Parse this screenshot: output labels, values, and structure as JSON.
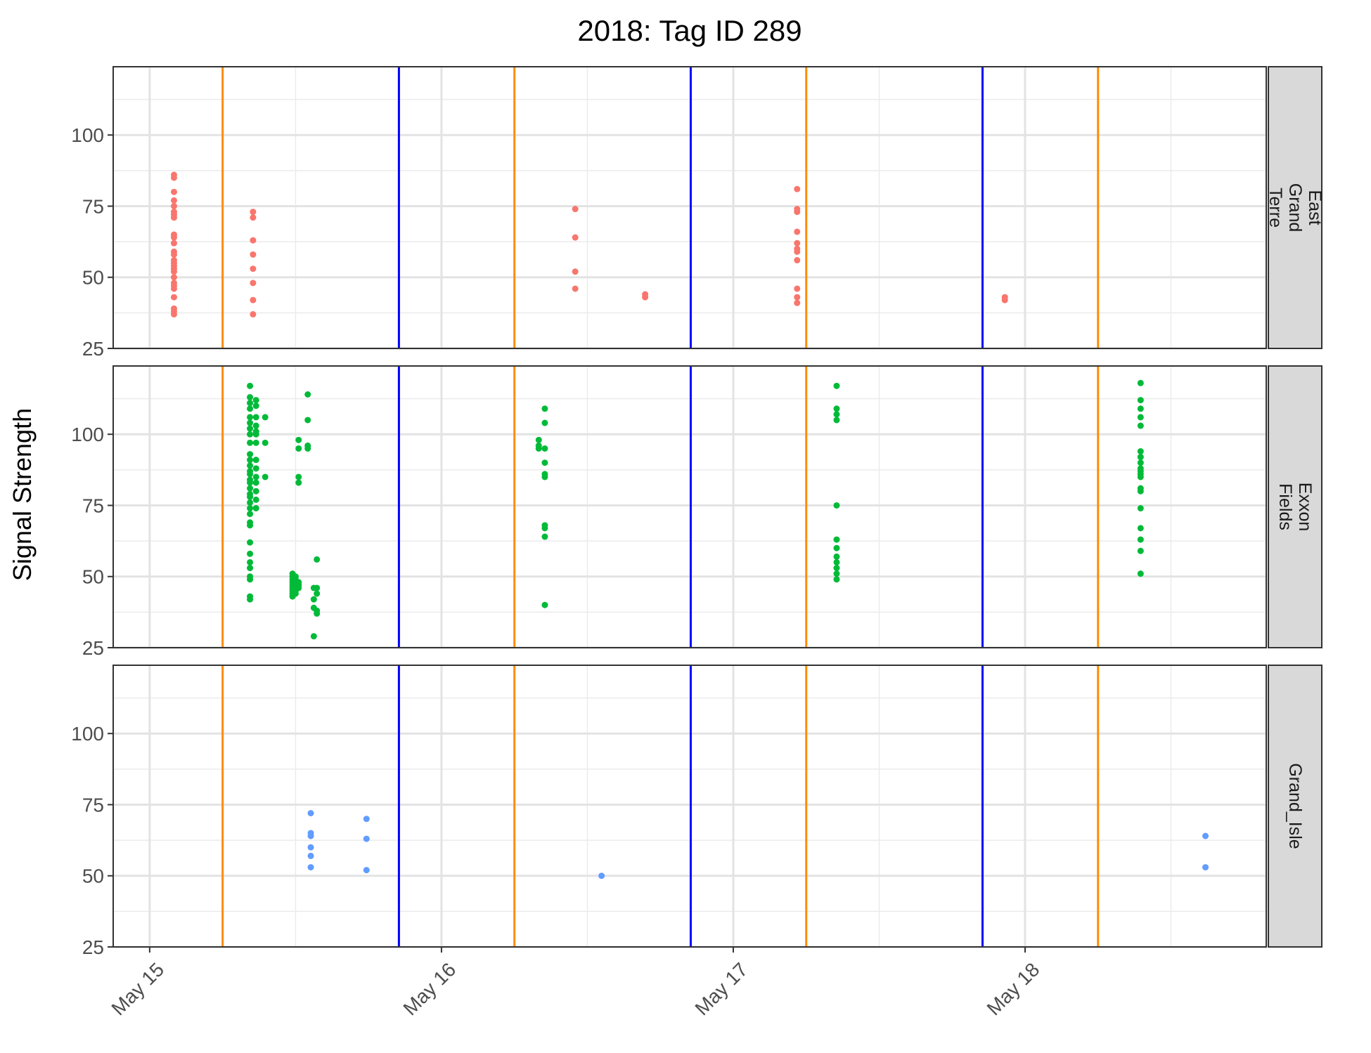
{
  "chart_data": {
    "type": "scatter",
    "title": "2018: Tag ID 289",
    "ylabel": "Signal Strength",
    "xlabel": "",
    "xlim": [
      "2018-05-14 21:00",
      "2018-05-18 19:50"
    ],
    "ylim": [
      25,
      124
    ],
    "x_ticks": [
      {
        "date": "2018-05-15 00:00",
        "label": "May 15"
      },
      {
        "date": "2018-05-16 00:00",
        "label": "May 16"
      },
      {
        "date": "2018-05-17 00:00",
        "label": "May 17"
      },
      {
        "date": "2018-05-18 00:00",
        "label": "May 18"
      }
    ],
    "y_ticks": [
      25,
      50,
      75,
      100
    ],
    "grid": true,
    "legend": "none",
    "vlines": [
      {
        "date": "2018-05-15 06:00",
        "color": "#ff8c00"
      },
      {
        "date": "2018-05-15 20:30",
        "color": "#0000ff"
      },
      {
        "date": "2018-05-16 06:00",
        "color": "#ff8c00"
      },
      {
        "date": "2018-05-16 20:30",
        "color": "#0000ff"
      },
      {
        "date": "2018-05-17 06:00",
        "color": "#ff8c00"
      },
      {
        "date": "2018-05-17 20:30",
        "color": "#0000ff"
      },
      {
        "date": "2018-05-18 06:00",
        "color": "#ff8c00"
      }
    ],
    "panels": [
      {
        "label": "East Grand Terre",
        "label_lines": [
          "East",
          "Grand",
          "Terre"
        ],
        "color": "#f8766d",
        "points": [
          {
            "x": "2018-05-15 02:00",
            "y": [
              86,
              85,
              80,
              77,
              75,
              73,
              72,
              71,
              65,
              64,
              62,
              59,
              58,
              56,
              55,
              54,
              53,
              52,
              50,
              48,
              47,
              46,
              43,
              39,
              38,
              37
            ]
          },
          {
            "x": "2018-05-15 08:30",
            "y": [
              73,
              71,
              63,
              58,
              53,
              48,
              42,
              37
            ]
          },
          {
            "x": "2018-05-16 11:00",
            "y": [
              74,
              64,
              52,
              46
            ]
          },
          {
            "x": "2018-05-16 16:45",
            "y": [
              44,
              43
            ]
          },
          {
            "x": "2018-05-17 05:15",
            "y": [
              81,
              74,
              73,
              66,
              62,
              60,
              59,
              56,
              46,
              43,
              41
            ]
          },
          {
            "x": "2018-05-17 22:20",
            "y": [
              43,
              42
            ]
          }
        ]
      },
      {
        "label": "Exxon Fields",
        "label_lines": [
          "Exxon",
          "Fields"
        ],
        "color": "#00ba38",
        "points": [
          {
            "x": "2018-05-15 08:15",
            "y": [
              117,
              113,
              111,
              109,
              106,
              104,
              102,
              100,
              97,
              93,
              91,
              89,
              87,
              86,
              84,
              83,
              81,
              79,
              78,
              76,
              74,
              72,
              69,
              68,
              62,
              58,
              55,
              53,
              50,
              49,
              43,
              42
            ]
          },
          {
            "x": "2018-05-15 08:45",
            "y": [
              112,
              110,
              106,
              103,
              101,
              100,
              97,
              91,
              88,
              85,
              83,
              80,
              77,
              74
            ]
          },
          {
            "x": "2018-05-15 09:30",
            "y": [
              106,
              97,
              85
            ]
          },
          {
            "x": "2018-05-15 11:45",
            "y": [
              51,
              50,
              49,
              48,
              47,
              46,
              45,
              44,
              43
            ]
          },
          {
            "x": "2018-05-15 12:00",
            "y": [
              50,
              49,
              48,
              47,
              46,
              45,
              44
            ]
          },
          {
            "x": "2018-05-15 12:15",
            "y": [
              98,
              95,
              85,
              83,
              48,
              47,
              46
            ]
          },
          {
            "x": "2018-05-15 13:00",
            "y": [
              114,
              105,
              96,
              95
            ]
          },
          {
            "x": "2018-05-15 13:30",
            "y": [
              46,
              42,
              39,
              29
            ]
          },
          {
            "x": "2018-05-15 13:45",
            "y": [
              56,
              46,
              44,
              38,
              37
            ]
          },
          {
            "x": "2018-05-16 08:00",
            "y": [
              98,
              96,
              95
            ]
          },
          {
            "x": "2018-05-16 08:30",
            "y": [
              109,
              104,
              95,
              90,
              86,
              85,
              68,
              67,
              64,
              40
            ]
          },
          {
            "x": "2018-05-17 08:30",
            "y": [
              117,
              109,
              107,
              105,
              75,
              63,
              60,
              57,
              55,
              53,
              51,
              49
            ]
          },
          {
            "x": "2018-05-18 09:30",
            "y": [
              118,
              112,
              109,
              106,
              103,
              94,
              92,
              90,
              88,
              87,
              86,
              85,
              81,
              80,
              74,
              67,
              63,
              59,
              51
            ]
          }
        ]
      },
      {
        "label": "Grand_Isle",
        "label_lines": [
          "Grand_Isle"
        ],
        "color": "#619cff",
        "points": [
          {
            "x": "2018-05-15 13:15",
            "y": [
              72,
              65,
              64,
              60,
              57,
              53
            ]
          },
          {
            "x": "2018-05-15 17:50",
            "y": [
              70,
              63,
              52
            ]
          },
          {
            "x": "2018-05-16 13:10",
            "y": [
              50
            ]
          },
          {
            "x": "2018-05-18 14:50",
            "y": [
              64,
              53
            ]
          }
        ]
      }
    ]
  }
}
